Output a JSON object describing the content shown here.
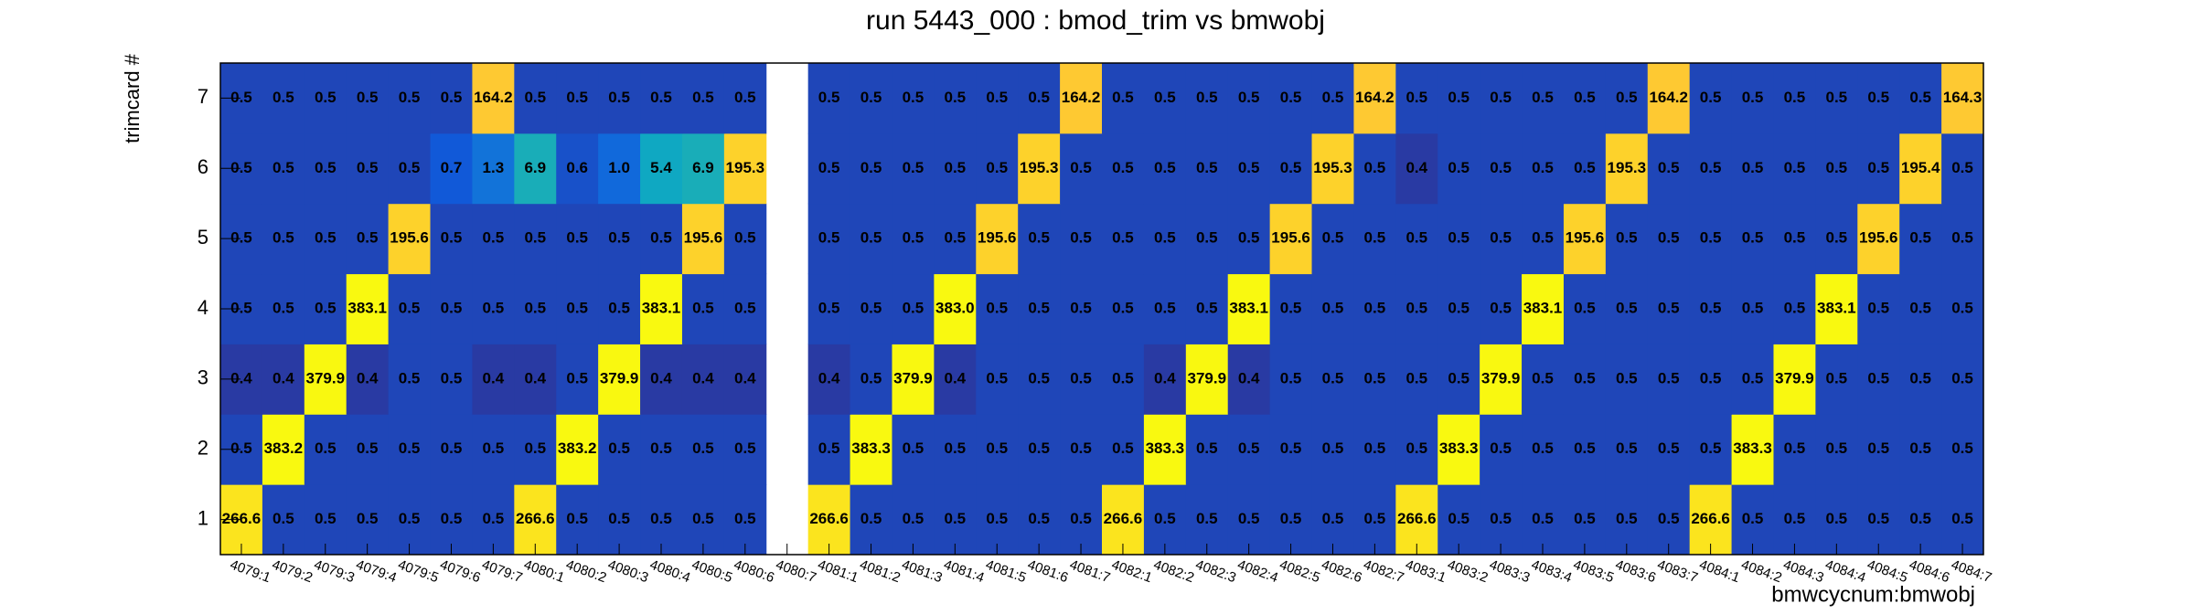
{
  "chart_data": {
    "type": "heatmap",
    "title": "run 5443_000 : bmod_trim vs bmwobj",
    "x_label": "bmwcycnum:bmwobj",
    "y_label": "trimcard #",
    "categories": [
      "4079:1",
      "4079:2",
      "4079:3",
      "4079:4",
      "4079:5",
      "4079:6",
      "4079:7",
      "4080:1",
      "4080:2",
      "4080:3",
      "4080:4",
      "4080:5",
      "4080:6",
      "4080:7",
      "4081:1",
      "4081:2",
      "4081:3",
      "4081:4",
      "4081:5",
      "4081:6",
      "4081:7",
      "4082:1",
      "4082:2",
      "4082:3",
      "4082:4",
      "4082:5",
      "4082:6",
      "4082:7",
      "4083:1",
      "4083:2",
      "4083:3",
      "4083:4",
      "4083:5",
      "4083:6",
      "4083:7",
      "4084:1",
      "4084:2",
      "4084:3",
      "4084:4",
      "4084:5",
      "4084:6",
      "4084:7"
    ],
    "y_categories": [
      "1",
      "2",
      "3",
      "4",
      "5",
      "6",
      "7"
    ],
    "zlim": [
      0.3,
      400
    ],
    "zlog": true,
    "palette": [
      "#352a87",
      "#0f5cdd",
      "#1481d6",
      "#06a4ca",
      "#2eb7a4",
      "#87bf77",
      "#d1bb59",
      "#fec832",
      "#f9fb0e"
    ],
    "z": [
      [
        266.6,
        0.5,
        0.5,
        0.5,
        0.5,
        0.5,
        0.5,
        266.6,
        0.5,
        0.5,
        0.5,
        0.5,
        0.5,
        null,
        266.6,
        0.5,
        0.5,
        0.5,
        0.5,
        0.5,
        0.5,
        266.6,
        0.5,
        0.5,
        0.5,
        0.5,
        0.5,
        0.5,
        266.6,
        0.5,
        0.5,
        0.5,
        0.5,
        0.5,
        0.5,
        266.6,
        0.5,
        0.5,
        0.5,
        0.5,
        0.5,
        0.5
      ],
      [
        0.5,
        383.2,
        0.5,
        0.5,
        0.5,
        0.5,
        0.5,
        0.5,
        383.2,
        0.5,
        0.5,
        0.5,
        0.5,
        null,
        0.5,
        383.3,
        0.5,
        0.5,
        0.5,
        0.5,
        0.5,
        0.5,
        383.3,
        0.5,
        0.5,
        0.5,
        0.5,
        0.5,
        0.5,
        383.3,
        0.5,
        0.5,
        0.5,
        0.5,
        0.5,
        0.5,
        383.3,
        0.5,
        0.5,
        0.5,
        0.5,
        0.5
      ],
      [
        0.4,
        0.4,
        379.9,
        0.4,
        0.5,
        0.5,
        0.4,
        0.4,
        0.5,
        379.9,
        0.4,
        0.4,
        0.4,
        null,
        0.4,
        0.5,
        379.9,
        0.4,
        0.5,
        0.5,
        0.5,
        0.5,
        0.4,
        379.9,
        0.4,
        0.5,
        0.5,
        0.5,
        0.5,
        0.5,
        379.9,
        0.5,
        0.5,
        0.5,
        0.5,
        0.5,
        0.5,
        379.9,
        0.5,
        0.5,
        0.5,
        0.5
      ],
      [
        0.5,
        0.5,
        0.5,
        383.1,
        0.5,
        0.5,
        0.5,
        0.5,
        0.5,
        0.5,
        383.1,
        0.5,
        0.5,
        null,
        0.5,
        0.5,
        0.5,
        383.0,
        0.5,
        0.5,
        0.5,
        0.5,
        0.5,
        0.5,
        383.1,
        0.5,
        0.5,
        0.5,
        0.5,
        0.5,
        0.5,
        383.1,
        0.5,
        0.5,
        0.5,
        0.5,
        0.5,
        0.5,
        383.1,
        0.5,
        0.5,
        0.5
      ],
      [
        0.5,
        0.5,
        0.5,
        0.5,
        195.6,
        0.5,
        0.5,
        0.5,
        0.5,
        0.5,
        0.5,
        195.6,
        0.5,
        null,
        0.5,
        0.5,
        0.5,
        0.5,
        195.6,
        0.5,
        0.5,
        0.5,
        0.5,
        0.5,
        0.5,
        195.6,
        0.5,
        0.5,
        0.5,
        0.5,
        0.5,
        0.5,
        195.6,
        0.5,
        0.5,
        0.5,
        0.5,
        0.5,
        0.5,
        195.6,
        0.5,
        0.5
      ],
      [
        0.5,
        0.5,
        0.5,
        0.5,
        0.5,
        0.7,
        1.3,
        6.9,
        0.6,
        1.0,
        5.4,
        6.9,
        195.3,
        null,
        0.5,
        0.5,
        0.5,
        0.5,
        0.5,
        195.3,
        0.5,
        0.5,
        0.5,
        0.5,
        0.5,
        0.5,
        195.3,
        0.5,
        0.4,
        0.5,
        0.5,
        0.5,
        0.5,
        195.3,
        0.5,
        0.5,
        0.5,
        0.5,
        0.5,
        0.5,
        195.4,
        0.5
      ],
      [
        0.5,
        0.5,
        0.5,
        0.5,
        0.5,
        0.5,
        164.2,
        0.5,
        0.5,
        0.5,
        0.5,
        0.5,
        0.5,
        null,
        0.5,
        0.5,
        0.5,
        0.5,
        0.5,
        0.5,
        164.2,
        0.5,
        0.5,
        0.5,
        0.5,
        0.5,
        0.5,
        164.2,
        0.5,
        0.5,
        0.5,
        0.5,
        0.5,
        0.5,
        164.2,
        0.5,
        0.5,
        0.5,
        0.5,
        0.5,
        0.5,
        164.3
      ]
    ],
    "value_labels": [
      [
        "266.6",
        "0.5",
        "0.5",
        "0.5",
        "0.5",
        "0.5",
        "0.5",
        "266.6",
        "0.5",
        "0.5",
        "0.5",
        "0.5",
        "0.5",
        null,
        "266.6",
        "0.5",
        "0.5",
        "0.5",
        "0.5",
        "0.5",
        "0.5",
        "266.6",
        "0.5",
        "0.5",
        "0.5",
        "0.5",
        "0.5",
        "0.5",
        "266.6",
        "0.5",
        "0.5",
        "0.5",
        "0.5",
        "0.5",
        "0.5",
        "266.6",
        "0.5",
        "0.5",
        "0.5",
        "0.5",
        "0.5",
        "0.5"
      ],
      [
        "0.5",
        "383.2",
        "0.5",
        "0.5",
        "0.5",
        "0.5",
        "0.5",
        "0.5",
        "383.2",
        "0.5",
        "0.5",
        "0.5",
        "0.5",
        null,
        "0.5",
        "383.3",
        "0.5",
        "0.5",
        "0.5",
        "0.5",
        "0.5",
        "0.5",
        "383.3",
        "0.5",
        "0.5",
        "0.5",
        "0.5",
        "0.5",
        "0.5",
        "383.3",
        "0.5",
        "0.5",
        "0.5",
        "0.5",
        "0.5",
        "0.5",
        "383.3",
        "0.5",
        "0.5",
        "0.5",
        "0.5",
        "0.5"
      ],
      [
        "0.4",
        "0.4",
        "379.9",
        "0.4",
        "0.5",
        "0.5",
        "0.4",
        "0.4",
        "0.5",
        "379.9",
        "0.4",
        "0.4",
        "0.4",
        null,
        "0.4",
        "0.5",
        "379.9",
        "0.4",
        "0.5",
        "0.5",
        "0.5",
        "0.5",
        "0.4",
        "379.9",
        "0.4",
        "0.5",
        "0.5",
        "0.5",
        "0.5",
        "0.5",
        "379.9",
        "0.5",
        "0.5",
        "0.5",
        "0.5",
        "0.5",
        "0.5",
        "379.9",
        "0.5",
        "0.5",
        "0.5",
        "0.5"
      ],
      [
        "0.5",
        "0.5",
        "0.5",
        "383.1",
        "0.5",
        "0.5",
        "0.5",
        "0.5",
        "0.5",
        "0.5",
        "383.1",
        "0.5",
        "0.5",
        null,
        "0.5",
        "0.5",
        "0.5",
        "383.0",
        "0.5",
        "0.5",
        "0.5",
        "0.5",
        "0.5",
        "0.5",
        "383.1",
        "0.5",
        "0.5",
        "0.5",
        "0.5",
        "0.5",
        "0.5",
        "383.1",
        "0.5",
        "0.5",
        "0.5",
        "0.5",
        "0.5",
        "0.5",
        "383.1",
        "0.5",
        "0.5",
        "0.5"
      ],
      [
        "0.5",
        "0.5",
        "0.5",
        "0.5",
        "195.6",
        "0.5",
        "0.5",
        "0.5",
        "0.5",
        "0.5",
        "0.5",
        "195.6",
        "0.5",
        null,
        "0.5",
        "0.5",
        "0.5",
        "0.5",
        "195.6",
        "0.5",
        "0.5",
        "0.5",
        "0.5",
        "0.5",
        "0.5",
        "195.6",
        "0.5",
        "0.5",
        "0.5",
        "0.5",
        "0.5",
        "0.5",
        "195.6",
        "0.5",
        "0.5",
        "0.5",
        "0.5",
        "0.5",
        "0.5",
        "195.6",
        "0.5",
        "0.5"
      ],
      [
        "0.5",
        "0.5",
        "0.5",
        "0.5",
        "0.5",
        "0.7",
        "1.3",
        "6.9",
        "0.6",
        "1.0",
        "5.4",
        "6.9",
        "195.3",
        null,
        "0.5",
        "0.5",
        "0.5",
        "0.5",
        "0.5",
        "195.3",
        "0.5",
        "0.5",
        "0.5",
        "0.5",
        "0.5",
        "0.5",
        "195.3",
        "0.5",
        "0.4",
        "0.5",
        "0.5",
        "0.5",
        "0.5",
        "195.3",
        "0.5",
        "0.5",
        "0.5",
        "0.5",
        "0.5",
        "0.5",
        "195.4",
        "0.5"
      ],
      [
        "0.5",
        "0.5",
        "0.5",
        "0.5",
        "0.5",
        "0.5",
        "164.2",
        "0.5",
        "0.5",
        "0.5",
        "0.5",
        "0.5",
        "0.5",
        null,
        "0.5",
        "0.5",
        "0.5",
        "0.5",
        "0.5",
        "0.5",
        "164.2",
        "0.5",
        "0.5",
        "0.5",
        "0.5",
        "0.5",
        "0.5",
        "164.2",
        "0.5",
        "0.5",
        "0.5",
        "0.5",
        "0.5",
        "0.5",
        "164.2",
        "0.5",
        "0.5",
        "0.5",
        "0.5",
        "0.5",
        "0.5",
        "164.3"
      ]
    ]
  }
}
